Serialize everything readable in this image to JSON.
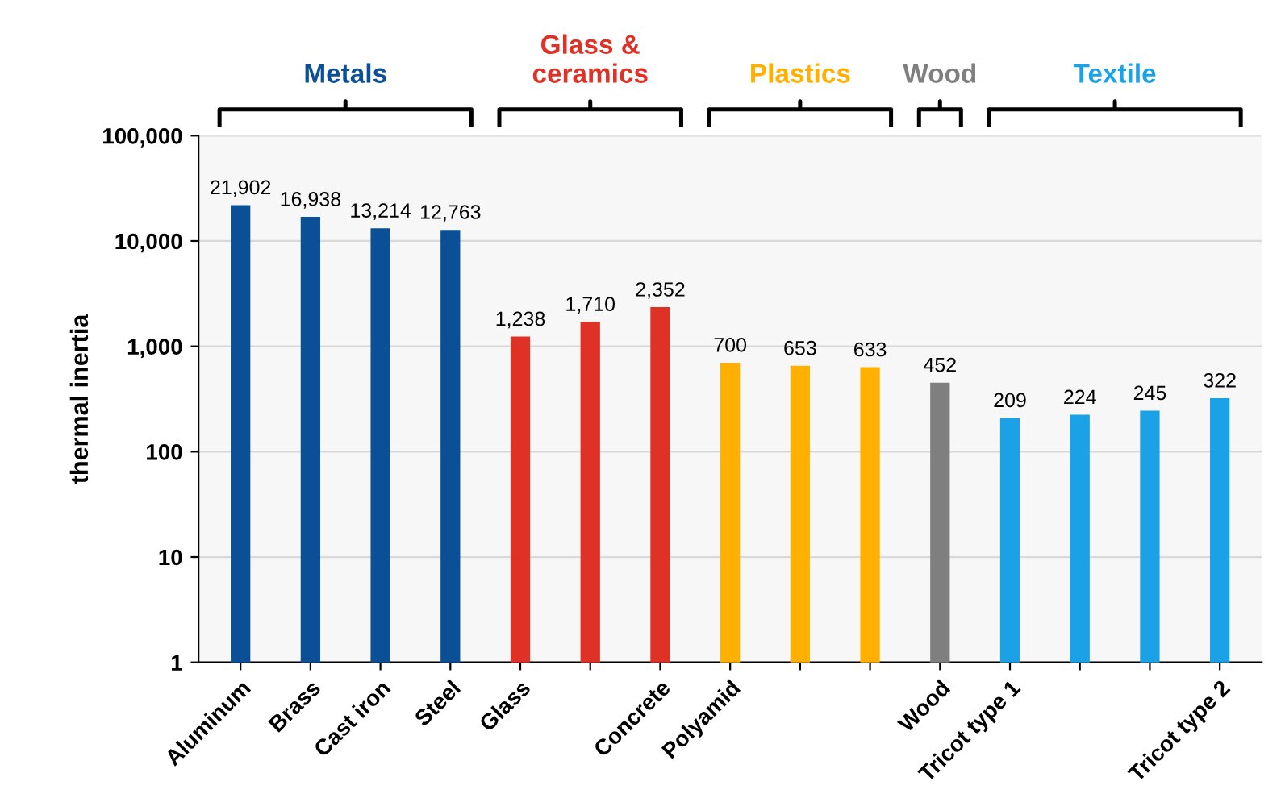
{
  "chart_data": {
    "type": "bar",
    "ylabel": "thermal inertia",
    "categories": [
      "Aluminum",
      "Brass",
      "Cast iron",
      "Steel",
      "Glass",
      null,
      "Concrete",
      "Polyamid",
      null,
      null,
      "Wood",
      "Tricot type 1",
      null,
      null,
      "Tricot type 2"
    ],
    "values": [
      21902,
      16938,
      13214,
      12763,
      1238,
      1710,
      2352,
      700,
      653,
      633,
      452,
      209,
      224,
      245,
      322
    ],
    "value_labels": [
      "21,902",
      "16,938",
      "13,214",
      "12,763",
      "1,238",
      "1,710",
      "2,352",
      "700",
      "653",
      "633",
      "452",
      "209",
      "224",
      "245",
      "322"
    ],
    "colors": [
      "#0b4f97",
      "#0b4f97",
      "#0b4f97",
      "#0b4f97",
      "#e03127",
      "#e03127",
      "#e03127",
      "#ffb000",
      "#ffb000",
      "#ffb000",
      "#7f7f7f",
      "#1ba1e6",
      "#1ba1e6",
      "#1ba1e6",
      "#1ba1e6"
    ],
    "annotations": [
      "Metals",
      "Glass &\nceramics",
      "Plastics",
      "Wood",
      "Textile"
    ],
    "log": true,
    "ylim": [
      1,
      100000
    ],
    "yticks": [
      1,
      10,
      100,
      {
        "value": 1000,
        "label": "1,000"
      },
      {
        "value": 10000,
        "label": "10,000"
      },
      {
        "value": 100000,
        "label": "100,000"
      }
    ],
    "grid": "y"
  }
}
